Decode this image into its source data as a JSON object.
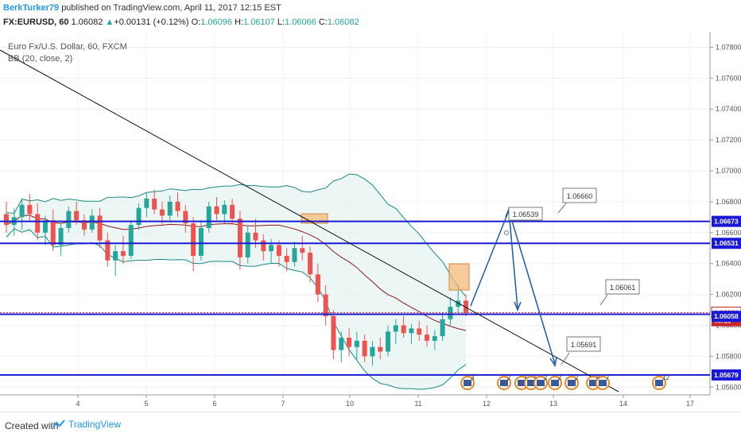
{
  "header": {
    "author": "BerkTurker79",
    "published_text": "published on TradingView.com, April 11, 2017 12:15 EST",
    "symbol": "FX:EURUSD, 60",
    "last": "1.06082",
    "change": "+0.00131 (+0.12%)",
    "o_label": "O:",
    "o_value": "1.06096",
    "h_label": "H:",
    "h_value": "1.06107",
    "l_label": "L:",
    "l_value": "1.06066",
    "c_label": "C:",
    "c_value": "1.06082"
  },
  "legend": {
    "title": "Euro Fx/U.S. Dollar, 60, FXCM",
    "indicator": "BB (20, close, 2)"
  },
  "footer": {
    "created_with": "Created with",
    "brand": "TradingView"
  },
  "colors": {
    "candle_up": "#26a69a",
    "candle_down": "#ef5350",
    "bb_band": "#1b8a82",
    "bb_basis": "#8b1a1a",
    "horizontal_line": "#1a1ad6",
    "projection": "#1f5aa8",
    "box_fill": "#f4b97a"
  },
  "chart_data": {
    "type": "candlestick",
    "price_axis": [
      "1.07800",
      "1.07600",
      "1.07400",
      "1.07200",
      "1.07000",
      "1.06800",
      "1.06600",
      "1.06400",
      "1.06200",
      "1.06000",
      "1.05800",
      "1.05600"
    ],
    "time_axis": [
      "4",
      "5",
      "6",
      "7",
      "10",
      "11",
      "12",
      "13",
      "14",
      "17"
    ],
    "ylim": [
      1.0555,
      1.079
    ],
    "price_tags": [
      {
        "label": "1.06673",
        "value": 1.06673,
        "style": "filled"
      },
      {
        "label": "1.06531",
        "value": 1.06531,
        "style": "filled"
      },
      {
        "label": "1.06082",
        "value": 1.06082,
        "style": "last"
      },
      {
        "label": "46:15",
        "value": 1.0603,
        "style": "countdown"
      },
      {
        "label": "1.06058",
        "value": 1.06058,
        "style": "filled"
      },
      {
        "label": "1.05679",
        "value": 1.05679,
        "style": "filled"
      }
    ],
    "horizontal_levels": [
      1.06673,
      1.06531,
      1.06082,
      1.05679
    ],
    "callouts": [
      "1.06660",
      "1.06539",
      "1.06061",
      "1.05691"
    ],
    "event_counts": [
      "3",
      "2",
      "5",
      "5",
      "2",
      "2",
      "2",
      "8",
      "7",
      "12"
    ],
    "candles": [
      [
        1.0672,
        1.068,
        1.066,
        1.0665
      ],
      [
        1.0665,
        1.0676,
        1.0658,
        1.067
      ],
      [
        1.067,
        1.0682,
        1.0662,
        1.0678
      ],
      [
        1.0678,
        1.0685,
        1.0668,
        1.0672
      ],
      [
        1.0672,
        1.0679,
        1.0655,
        1.066
      ],
      [
        1.066,
        1.0671,
        1.0652,
        1.0668
      ],
      [
        1.0668,
        1.0675,
        1.0648,
        1.0652
      ],
      [
        1.0652,
        1.0666,
        1.0645,
        1.0663
      ],
      [
        1.0663,
        1.0677,
        1.066,
        1.0674
      ],
      [
        1.0674,
        1.068,
        1.0665,
        1.0668
      ],
      [
        1.0668,
        1.0672,
        1.0658,
        1.0662
      ],
      [
        1.0662,
        1.0675,
        1.066,
        1.0671
      ],
      [
        1.0671,
        1.0676,
        1.065,
        1.0655
      ],
      [
        1.0655,
        1.066,
        1.0638,
        1.0642
      ],
      [
        1.0642,
        1.0652,
        1.0632,
        1.0648
      ],
      [
        1.0648,
        1.0658,
        1.064,
        1.0645
      ],
      [
        1.0645,
        1.0668,
        1.0643,
        1.0665
      ],
      [
        1.0665,
        1.0679,
        1.0662,
        1.0676
      ],
      [
        1.0676,
        1.0686,
        1.067,
        1.0682
      ],
      [
        1.0682,
        1.0688,
        1.0672,
        1.0675
      ],
      [
        1.0675,
        1.068,
        1.0665,
        1.0671
      ],
      [
        1.0671,
        1.0684,
        1.0668,
        1.068
      ],
      [
        1.068,
        1.0686,
        1.067,
        1.0674
      ],
      [
        1.0674,
        1.0678,
        1.066,
        1.0666
      ],
      [
        1.0666,
        1.067,
        1.0635,
        1.0645
      ],
      [
        1.0645,
        1.0668,
        1.0642,
        1.0663
      ],
      [
        1.0663,
        1.068,
        1.066,
        1.0677
      ],
      [
        1.0677,
        1.0683,
        1.0668,
        1.0672
      ],
      [
        1.0672,
        1.0681,
        1.0666,
        1.0678
      ],
      [
        1.0678,
        1.0682,
        1.0665,
        1.0669
      ],
      [
        1.0669,
        1.0674,
        1.0636,
        1.0644
      ],
      [
        1.0644,
        1.0664,
        1.064,
        1.066
      ],
      [
        1.066,
        1.0669,
        1.065,
        1.0655
      ],
      [
        1.0655,
        1.0659,
        1.0642,
        1.0648
      ],
      [
        1.0648,
        1.0656,
        1.064,
        1.0652
      ],
      [
        1.0652,
        1.0655,
        1.0638,
        1.0645
      ],
      [
        1.0645,
        1.065,
        1.0635,
        1.0641
      ],
      [
        1.0641,
        1.0654,
        1.0638,
        1.065
      ],
      [
        1.065,
        1.0658,
        1.0642,
        1.0647
      ],
      [
        1.0647,
        1.0651,
        1.0628,
        1.0633
      ],
      [
        1.0633,
        1.064,
        1.0615,
        1.062
      ],
      [
        1.062,
        1.0626,
        1.06,
        1.0606
      ],
      [
        1.0606,
        1.061,
        1.0578,
        1.0584
      ],
      [
        1.0584,
        1.0596,
        1.0576,
        1.0592
      ],
      [
        1.0592,
        1.0598,
        1.058,
        1.0586
      ],
      [
        1.0586,
        1.0596,
        1.0578,
        1.059
      ],
      [
        1.059,
        1.0594,
        1.0576,
        1.058
      ],
      [
        1.058,
        1.059,
        1.0574,
        1.0586
      ],
      [
        1.0586,
        1.0592,
        1.0578,
        1.0583
      ],
      [
        1.0583,
        1.06,
        1.058,
        1.0596
      ],
      [
        1.0596,
        1.0604,
        1.0588,
        1.06
      ],
      [
        1.06,
        1.0606,
        1.0592,
        1.0595
      ],
      [
        1.0595,
        1.0601,
        1.0588,
        1.0598
      ],
      [
        1.0598,
        1.0603,
        1.059,
        1.0594
      ],
      [
        1.0594,
        1.06,
        1.0586,
        1.059
      ],
      [
        1.059,
        1.0597,
        1.0584,
        1.0593
      ],
      [
        1.0593,
        1.0608,
        1.059,
        1.0604
      ],
      [
        1.0604,
        1.0618,
        1.06,
        1.0612
      ],
      [
        1.0612,
        1.0627,
        1.0608,
        1.0616
      ],
      [
        1.0616,
        1.062,
        1.0606,
        1.0608
      ]
    ]
  }
}
